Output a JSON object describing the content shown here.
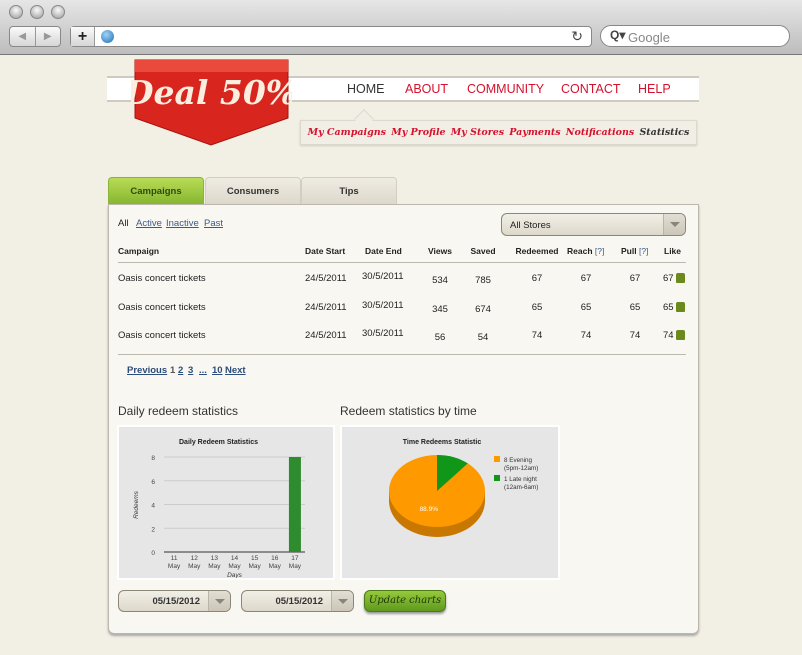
{
  "browser": {
    "search_placeholder": "Google",
    "url": ""
  },
  "logo": {
    "text": "Deal 50%"
  },
  "nav": {
    "items": [
      "HOME",
      "ABOUT",
      "COMMUNITY",
      "CONTACT",
      "HELP"
    ],
    "active": "HOME"
  },
  "subnav": {
    "items": [
      "My Campaigns",
      "My Profile",
      "My Stores",
      "Payments",
      "Notifications",
      "Statistics"
    ],
    "active": "Statistics"
  },
  "tabs": [
    "Campaigns",
    "Consumers",
    "Tips"
  ],
  "filters": [
    "All",
    "Active",
    "Inactive",
    "Past"
  ],
  "store_select": "All Stores",
  "table": {
    "headers": [
      "Campaign",
      "Date Start",
      "Date End",
      "Views",
      "Saved",
      "Redeemed",
      "Reach",
      "Pull",
      "Like"
    ],
    "help": "[?]",
    "rows": [
      [
        "Oasis concert tickets",
        "24/5/2011",
        "30/5/2011",
        "534",
        "785",
        "67",
        "67",
        "67",
        "67"
      ],
      [
        "Oasis concert tickets",
        "24/5/2011",
        "30/5/2011",
        "345",
        "674",
        "65",
        "65",
        "65",
        "65"
      ],
      [
        "Oasis concert tickets",
        "24/5/2011",
        "30/5/2011",
        "56",
        "54",
        "74",
        "74",
        "74",
        "74"
      ]
    ]
  },
  "pagination": {
    "prev": "Previous",
    "current": "1",
    "pages": [
      "2",
      "3",
      "...",
      "10"
    ],
    "next": "Next"
  },
  "sections": {
    "daily": "Daily redeem statistics",
    "time": "Redeem statistics by time"
  },
  "chart_data": [
    {
      "type": "bar",
      "title": "Daily Redeem Statistics",
      "xlabel": "Days",
      "ylabel": "Redeems",
      "categories": [
        "11 May",
        "12 May",
        "13 May",
        "14 May",
        "15 May",
        "16 May",
        "17 May"
      ],
      "values": [
        0,
        0,
        0,
        0,
        0,
        0,
        8
      ],
      "ylim": [
        0,
        8
      ],
      "yticks": [
        0,
        2,
        4,
        6,
        8
      ],
      "grid": true,
      "color": "#2e8b2e"
    },
    {
      "type": "pie",
      "title": "Time Redeems Statistic",
      "slices": [
        {
          "label": "8 Evening",
          "sublabel": "(5pm-12am)",
          "value": 8,
          "color": "#ff9900",
          "pct_label": "88.9%"
        },
        {
          "label": "1 Late night",
          "sublabel": "(12am-6am)",
          "value": 1,
          "color": "#109618"
        }
      ],
      "legend": "right"
    }
  ],
  "date_from": "05/15/2012",
  "date_to": "05/15/2012",
  "update_button": "Update charts"
}
